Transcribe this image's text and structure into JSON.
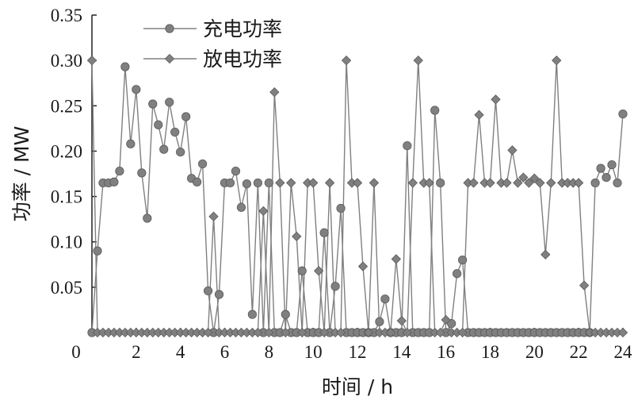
{
  "chart_data": {
    "type": "line",
    "xlabel": "时间 / h",
    "ylabel": "功率 / MW",
    "xlim": [
      0,
      24
    ],
    "ylim": [
      0,
      0.35
    ],
    "xticks": [
      0,
      2,
      4,
      6,
      8,
      10,
      12,
      14,
      16,
      18,
      20,
      22,
      24
    ],
    "xtick_labels": [
      "0",
      "2",
      "4",
      "6",
      "8",
      "10",
      "12",
      "14",
      "16",
      "18",
      "20",
      "22",
      "24"
    ],
    "yticks": [
      0.05,
      0.1,
      0.15,
      0.2,
      0.25,
      0.3,
      0.35
    ],
    "ytick_labels": [
      "0.05",
      "0.10",
      "0.15",
      "0.20",
      "0.25",
      "0.30",
      "0.35"
    ],
    "origin_label": "0",
    "grid": false,
    "legend_position": "top-center",
    "series": [
      {
        "name": "充电功率",
        "marker": "circle",
        "color": "#808080",
        "x": [
          0,
          0.25,
          0.5,
          0.75,
          1,
          1.25,
          1.5,
          1.75,
          2,
          2.25,
          2.5,
          2.75,
          3,
          3.25,
          3.5,
          3.75,
          4,
          4.25,
          4.5,
          4.75,
          5,
          5.25,
          5.5,
          5.75,
          6,
          6.25,
          6.5,
          6.75,
          7,
          7.25,
          7.5,
          7.75,
          8,
          8.25,
          8.5,
          8.75,
          9,
          9.25,
          9.5,
          9.75,
          10,
          10.25,
          10.5,
          10.75,
          11,
          11.25,
          11.5,
          11.75,
          12,
          12.25,
          12.5,
          12.75,
          13,
          13.25,
          13.5,
          13.75,
          14,
          14.25,
          14.5,
          14.75,
          15,
          15.25,
          15.5,
          15.75,
          16,
          16.25,
          16.5,
          16.75,
          17,
          17.25,
          17.5,
          17.75,
          18,
          18.25,
          18.5,
          18.75,
          19,
          19.25,
          19.5,
          19.75,
          20,
          20.25,
          20.5,
          20.75,
          21,
          21.25,
          21.5,
          21.75,
          22,
          22.25,
          22.5,
          22.75,
          23,
          23.25,
          23.5,
          23.75,
          24
        ],
        "values": [
          0,
          0.09,
          0.165,
          0.165,
          0.166,
          0.178,
          0.293,
          0.208,
          0.268,
          0.176,
          0.126,
          0.252,
          0.229,
          0.202,
          0.254,
          0.221,
          0.199,
          0.238,
          0.17,
          0.166,
          0.186,
          0.046,
          0,
          0.042,
          0.165,
          0.165,
          0.178,
          0.138,
          0.164,
          0.02,
          0.165,
          0,
          0.165,
          0,
          0,
          0.02,
          0,
          0,
          0.068,
          0,
          0,
          0,
          0.11,
          0,
          0.051,
          0.137,
          0,
          0,
          0,
          0,
          0,
          0,
          0.012,
          0.037,
          0,
          0,
          0,
          0.206,
          0,
          0,
          0,
          0,
          0.245,
          0.165,
          0,
          0.01,
          0.065,
          0.08,
          0,
          0,
          0,
          0,
          0,
          0,
          0,
          0,
          0,
          0,
          0,
          0,
          0,
          0,
          0,
          0,
          0,
          0,
          0,
          0,
          0,
          0,
          0,
          0.165,
          0.181,
          0.171,
          0.185,
          0.165,
          0.241
        ]
      },
      {
        "name": "放电功率",
        "marker": "diamond",
        "color": "#808080",
        "x": [
          0,
          0.25,
          0.5,
          0.75,
          1,
          1.25,
          1.5,
          1.75,
          2,
          2.25,
          2.5,
          2.75,
          3,
          3.25,
          3.5,
          3.75,
          4,
          4.25,
          4.5,
          4.75,
          5,
          5.25,
          5.5,
          5.75,
          6,
          6.25,
          6.5,
          6.75,
          7,
          7.25,
          7.5,
          7.75,
          8,
          8.25,
          8.5,
          8.75,
          9,
          9.25,
          9.5,
          9.75,
          10,
          10.25,
          10.5,
          10.75,
          11,
          11.25,
          11.5,
          11.75,
          12,
          12.25,
          12.5,
          12.75,
          13,
          13.25,
          13.5,
          13.75,
          14,
          14.25,
          14.5,
          14.75,
          15,
          15.25,
          15.5,
          15.75,
          16,
          16.25,
          16.5,
          16.75,
          17,
          17.25,
          17.5,
          17.75,
          18,
          18.25,
          18.5,
          18.75,
          19,
          19.25,
          19.5,
          19.75,
          20,
          20.25,
          20.5,
          20.75,
          21,
          21.25,
          21.5,
          21.75,
          22,
          22.25,
          22.5,
          22.75,
          23,
          23.25,
          23.5,
          23.75,
          24
        ],
        "values": [
          0.3,
          0,
          0,
          0,
          0,
          0,
          0,
          0,
          0,
          0,
          0,
          0,
          0,
          0,
          0,
          0,
          0,
          0,
          0,
          0,
          0,
          0,
          0.128,
          0,
          0,
          0,
          0,
          0,
          0,
          0,
          0,
          0.134,
          0,
          0.265,
          0.165,
          0,
          0.165,
          0.106,
          0,
          0.165,
          0.165,
          0.068,
          0,
          0.165,
          0,
          0,
          0.3,
          0.165,
          0.165,
          0.073,
          0,
          0.165,
          0,
          0,
          0,
          0.081,
          0.013,
          0,
          0.165,
          0.3,
          0.165,
          0.165,
          0,
          0,
          0.014,
          0,
          0,
          0,
          0.165,
          0.165,
          0.24,
          0.165,
          0.165,
          0.257,
          0.165,
          0.165,
          0.201,
          0.165,
          0.171,
          0.165,
          0.17,
          0.165,
          0.086,
          0.165,
          0.3,
          0.165,
          0.165,
          0.165,
          0.165,
          0.052,
          0,
          0,
          0,
          0,
          0,
          0,
          0
        ]
      }
    ]
  }
}
